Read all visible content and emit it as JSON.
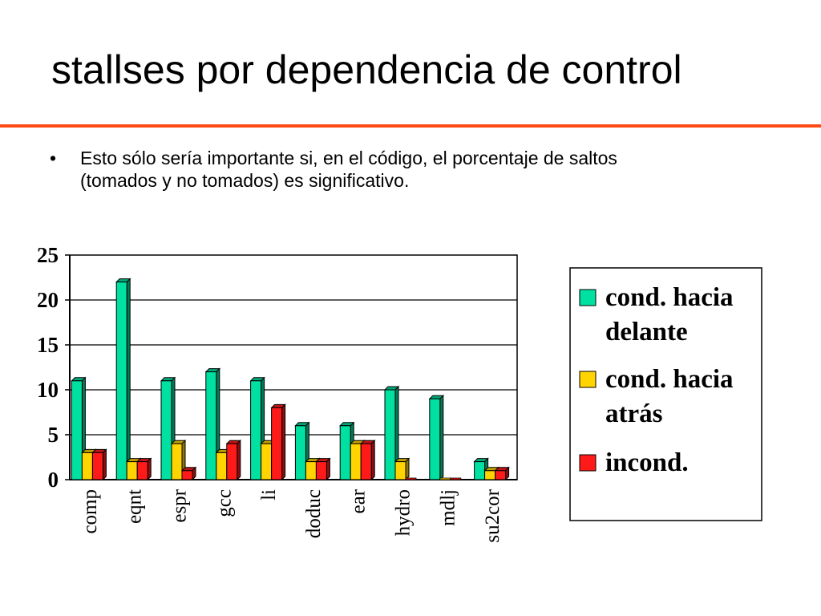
{
  "slide": {
    "title": "stallses por dependencia de control",
    "bullet_symbol": "•",
    "bullet_line_1": "Esto sólo sería importante si, en el código, el porcentaje de saltos",
    "bullet_line_2": "(tomados y no tomados) es significativo.",
    "rule_color": "#ff4a14"
  },
  "chart_data": {
    "type": "bar",
    "title": "",
    "xlabel": "",
    "ylabel": "",
    "ylim": [
      0,
      25
    ],
    "yticks": [
      0,
      5,
      10,
      15,
      20,
      25
    ],
    "grid": true,
    "legend_position": "right",
    "categories": [
      "comp",
      "eqnt",
      "espr",
      "gcc",
      "li",
      "doduc",
      "ear",
      "hydro",
      "mdlj",
      "su2cor"
    ],
    "series": [
      {
        "name": "cond. hacia delante",
        "legend_lines": [
          "cond. hacia",
          "delante"
        ],
        "color": "#00e0a0",
        "values": [
          11,
          22,
          11,
          12,
          11,
          6,
          6,
          10,
          9,
          2
        ]
      },
      {
        "name": "cond. hacia atrás",
        "legend_lines": [
          "cond. hacia",
          "atrás"
        ],
        "color": "#ffd400",
        "values": [
          3,
          2,
          4,
          3,
          4,
          2,
          4,
          2,
          0,
          1
        ]
      },
      {
        "name": "incond.",
        "legend_lines": [
          "incond."
        ],
        "color": "#ff1a1a",
        "values": [
          3,
          2,
          1,
          4,
          8,
          2,
          4,
          0,
          0,
          1
        ]
      }
    ]
  }
}
